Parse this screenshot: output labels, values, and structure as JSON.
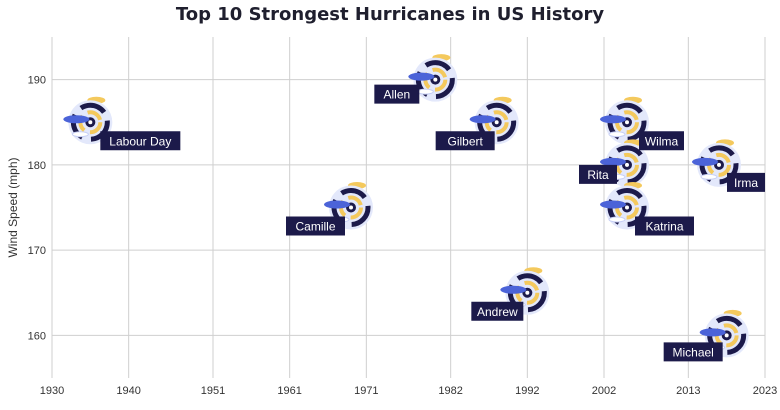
{
  "chart_data": {
    "type": "scatter",
    "title": "Top 10 Strongest Hurricanes in US  History",
    "xlabel": "",
    "ylabel": "Wind Speed (mph)",
    "xlim": [
      1930,
      2023
    ],
    "ylim": [
      155,
      195
    ],
    "x_ticks": [
      1930,
      1940,
      1951,
      1961,
      1971,
      1982,
      1992,
      2002,
      2013,
      2023
    ],
    "y_ticks": [
      160,
      170,
      180,
      190
    ],
    "grid": true,
    "points": [
      {
        "name": "Labour Day",
        "year": 1935,
        "wind_mph": 185
      },
      {
        "name": "Camille",
        "year": 1969,
        "wind_mph": 175
      },
      {
        "name": "Allen",
        "year": 1980,
        "wind_mph": 190
      },
      {
        "name": "Gilbert",
        "year": 1988,
        "wind_mph": 185
      },
      {
        "name": "Andrew",
        "year": 1992,
        "wind_mph": 165
      },
      {
        "name": "Wilma",
        "year": 2005,
        "wind_mph": 185
      },
      {
        "name": "Rita",
        "year": 2005,
        "wind_mph": 180
      },
      {
        "name": "Katrina",
        "year": 2005,
        "wind_mph": 175
      },
      {
        "name": "Irma",
        "year": 2017,
        "wind_mph": 180
      },
      {
        "name": "Michael",
        "year": 2018,
        "wind_mph": 160
      }
    ],
    "colors": {
      "label_bg": "#1c1a4a",
      "hurricane_dark": "#1c1a4a",
      "hurricane_blue": "#4b63d8",
      "hurricane_yellow": "#f4c95d",
      "grid": "#cfcfcf"
    },
    "marker_icon": "hurricane-icon"
  }
}
